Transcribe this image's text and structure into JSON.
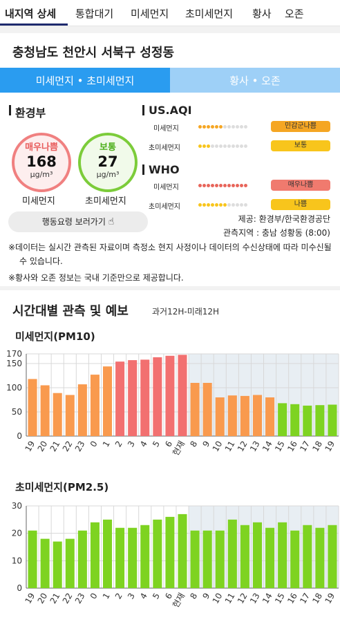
{
  "tabs": [
    {
      "label": "내지역 상세"
    },
    {
      "label": "통합대기"
    },
    {
      "label": "미세먼지"
    },
    {
      "label": "초미세먼지"
    },
    {
      "label": "황사"
    },
    {
      "label": "오존"
    }
  ],
  "location": "충청남도 천안시 서북구 성정동",
  "segment": {
    "left": "미세먼지 • 초미세먼지",
    "right": "황사 • 오존"
  },
  "korea": {
    "title": "환경부",
    "pm10": {
      "status": "매우나쁨",
      "value": "168",
      "unit": "μg/m³",
      "label": "미세먼지",
      "color": "#e86a6a"
    },
    "pm25": {
      "status": "보통",
      "value": "27",
      "unit": "μg/m³",
      "label": "초미세먼지",
      "color": "#6cc42a"
    },
    "action_button": "행동요령 보러가기"
  },
  "usaqi": {
    "title": "US.AQI",
    "rows": [
      {
        "label": "미세먼지",
        "badge": "민감군나쁨",
        "badge_color": "#f5a623",
        "level": 6,
        "dot_color": "#f5a623"
      },
      {
        "label": "초미세먼지",
        "badge": "보통",
        "badge_color": "#f8c51c",
        "level": 3,
        "dot_color": "#f8c51c"
      }
    ]
  },
  "who": {
    "title": "WHO",
    "rows": [
      {
        "label": "미세먼지",
        "badge": "매우나쁨",
        "badge_color": "#f07a6e",
        "level": 12,
        "dot_color": "#e8655a"
      },
      {
        "label": "초미세먼지",
        "badge": "나쁨",
        "badge_color": "#f8c51c",
        "level": 7,
        "dot_color": "#f8c51c"
      }
    ]
  },
  "source": {
    "provider": "제공: 환경부/한국환경공단",
    "station": "관측지역 : 충남 성황동 (8:00)"
  },
  "notes": {
    "note1": "※데이터는 실시간 관측된 자료이며 측정소 현지 사정이나 데이터의 수신상태에 따라 미수신될 수 있습니다.",
    "note2": "※황사와 오존 정보는 국내 기준만으로 제공합니다."
  },
  "forecast": {
    "title": "시간대별 관측 및 예보",
    "subtitle": "과거12H-미래12H"
  },
  "chart_data": [
    {
      "type": "bar",
      "title": "미세먼지(PM10)",
      "categories": [
        "19",
        "20",
        "21",
        "22",
        "23",
        "0",
        "1",
        "2",
        "3",
        "4",
        "5",
        "6",
        "현재",
        "8",
        "9",
        "10",
        "11",
        "12",
        "13",
        "14",
        "15",
        "16",
        "17",
        "18",
        "19"
      ],
      "values": [
        118,
        105,
        89,
        85,
        107,
        127,
        144,
        154,
        157,
        158,
        163,
        166,
        168,
        110,
        110,
        80,
        84,
        83,
        85,
        80,
        68,
        66,
        63,
        64,
        65
      ],
      "bar_colors": [
        "#f99a4e",
        "#f99a4e",
        "#f99a4e",
        "#f99a4e",
        "#f99a4e",
        "#f99a4e",
        "#f99a4e",
        "#f27070",
        "#f27070",
        "#f27070",
        "#f27070",
        "#f27070",
        "#f27070",
        "#f99a4e",
        "#f99a4e",
        "#f99a4e",
        "#f99a4e",
        "#f99a4e",
        "#f99a4e",
        "#f99a4e",
        "#7ed321",
        "#7ed321",
        "#7ed321",
        "#7ed321",
        "#7ed321"
      ],
      "yticks": [
        0,
        50,
        100,
        150,
        170
      ],
      "ylim": [
        0,
        170
      ],
      "forecast_start_index": 13
    },
    {
      "type": "bar",
      "title": "초미세먼지(PM2.5)",
      "categories": [
        "19",
        "20",
        "21",
        "22",
        "23",
        "0",
        "1",
        "2",
        "3",
        "4",
        "5",
        "6",
        "현재",
        "8",
        "9",
        "10",
        "11",
        "12",
        "13",
        "14",
        "15",
        "16",
        "17",
        "18",
        "19"
      ],
      "values": [
        21,
        18,
        17,
        18,
        21,
        24,
        25,
        22,
        22,
        23,
        25,
        26,
        27,
        21,
        21,
        21,
        25,
        23,
        24,
        22,
        24,
        21,
        23,
        22,
        23
      ],
      "bar_colors": [
        "#7ed321",
        "#7ed321",
        "#7ed321",
        "#7ed321",
        "#7ed321",
        "#7ed321",
        "#7ed321",
        "#7ed321",
        "#7ed321",
        "#7ed321",
        "#7ed321",
        "#7ed321",
        "#7ed321",
        "#7ed321",
        "#7ed321",
        "#7ed321",
        "#7ed321",
        "#7ed321",
        "#7ed321",
        "#7ed321",
        "#7ed321",
        "#7ed321",
        "#7ed321",
        "#7ed321",
        "#7ed321"
      ],
      "yticks": [
        0,
        10,
        20,
        30
      ],
      "ylim": [
        0,
        30
      ],
      "forecast_start_index": 13
    }
  ]
}
